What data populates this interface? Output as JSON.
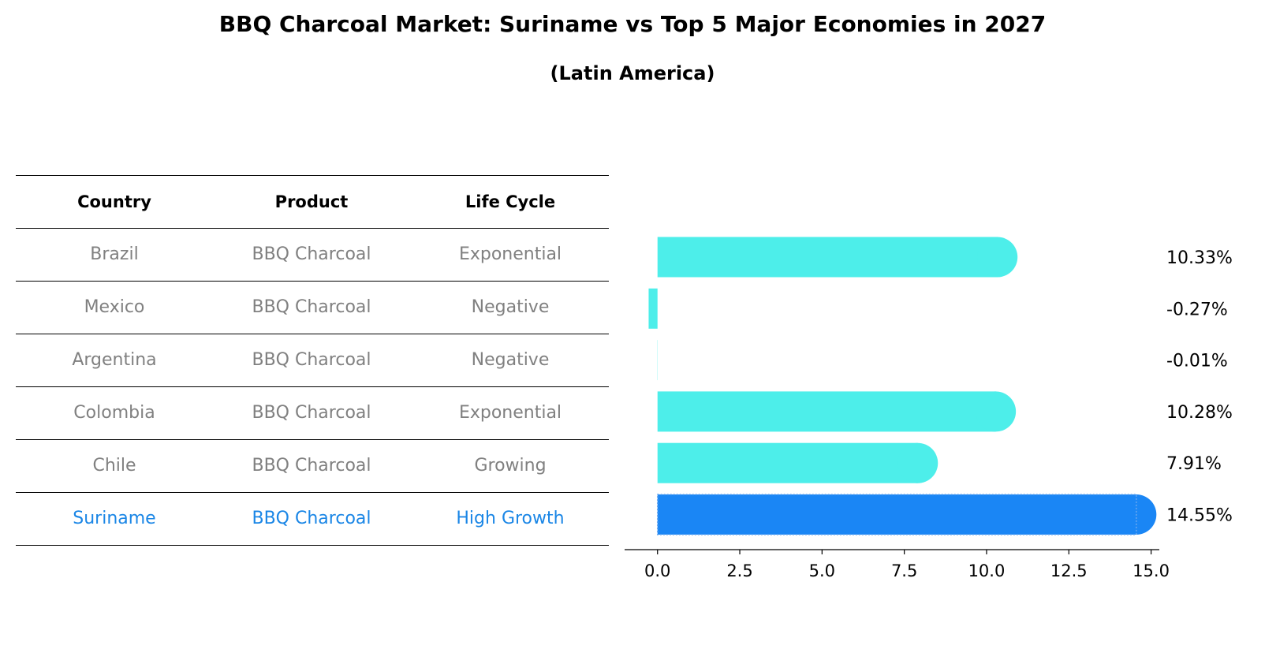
{
  "title": "BBQ Charcoal Market: Suriname vs Top 5 Major Economies in 2027",
  "subtitle": "(Latin America)",
  "colors": {
    "normal_bar": "#4deeea",
    "highlight_bar": "#1a86f5",
    "muted_text": "#808080",
    "highlight_text": "#1a86e6"
  },
  "table": {
    "headers": [
      "Country",
      "Product",
      "Life Cycle"
    ],
    "rows": [
      [
        "Brazil",
        "BBQ Charcoal",
        "Exponential"
      ],
      [
        "Mexico",
        "BBQ Charcoal",
        "Negative"
      ],
      [
        "Argentina",
        "BBQ Charcoal",
        "Negative"
      ],
      [
        "Colombia",
        "BBQ Charcoal",
        "Exponential"
      ],
      [
        "Chile",
        "BBQ Charcoal",
        "Growing"
      ],
      [
        "Suriname",
        "BBQ Charcoal",
        "High Growth"
      ]
    ],
    "highlight_row": 5
  },
  "chart_data": {
    "type": "bar",
    "orientation": "horizontal",
    "title": "BBQ Charcoal Market: Suriname vs Top 5 Major Economies in 2027",
    "subtitle": "(Latin America)",
    "categories": [
      "Brazil",
      "Mexico",
      "Argentina",
      "Colombia",
      "Chile",
      "Suriname"
    ],
    "values": [
      10.33,
      -0.27,
      -0.01,
      10.28,
      7.91,
      14.55
    ],
    "value_labels": [
      "10.33%",
      "-0.27%",
      "-0.01%",
      "10.28%",
      "7.91%",
      "14.55%"
    ],
    "highlight_index": 5,
    "xlim": [
      -1.0,
      15.25
    ],
    "xticks": [
      0.0,
      2.5,
      5.0,
      7.5,
      10.0,
      12.5,
      15.0
    ],
    "xtick_labels": [
      "0.0",
      "2.5",
      "5.0",
      "7.5",
      "10.0",
      "12.5",
      "15.0"
    ],
    "xlabel": "",
    "ylabel": "",
    "grid": false,
    "legend": "none"
  }
}
